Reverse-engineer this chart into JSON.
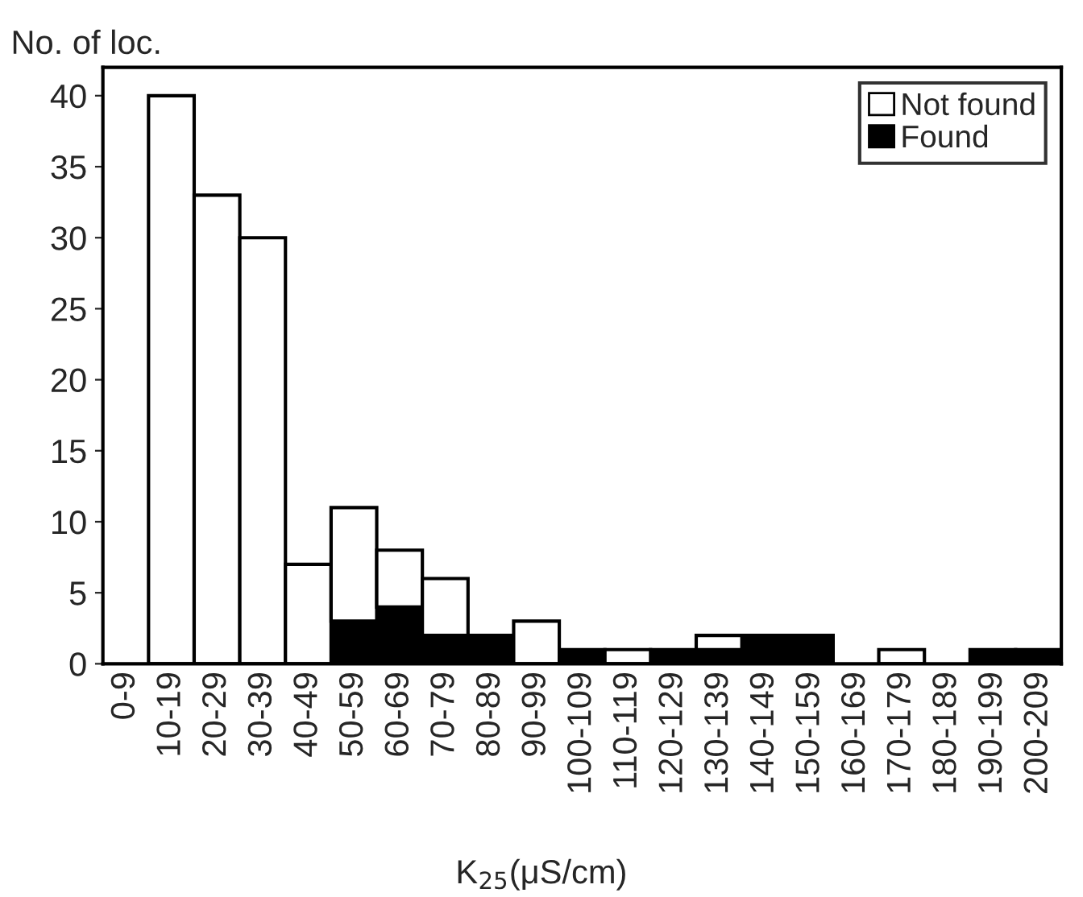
{
  "chart_data": {
    "type": "bar",
    "stacked": true,
    "ylabel": "No. of loc.",
    "xlabel": "K$_{25}$(μS/cm)",
    "categories": [
      "0-9",
      "10-19",
      "20-29",
      "30-39",
      "40-49",
      "50-59",
      "60-69",
      "70-79",
      "80-89",
      "90-99",
      "100-109",
      "110-119",
      "120-129",
      "130-139",
      "140-149",
      "150-159",
      "160-169",
      "170-179",
      "180-189",
      "190-199",
      "200-209"
    ],
    "series": [
      {
        "name": "Found",
        "color": "#000000",
        "values": [
          0,
          0,
          0,
          0,
          0,
          3,
          4,
          2,
          2,
          0,
          1,
          0,
          1,
          1,
          2,
          2,
          0,
          0,
          0,
          1,
          1
        ]
      },
      {
        "name": "Not found",
        "color": "#ffffff",
        "values": [
          0,
          40,
          33,
          30,
          7,
          8,
          4,
          4,
          0,
          3,
          0,
          1,
          0,
          1,
          0,
          0,
          0,
          1,
          0,
          0,
          0
        ]
      }
    ],
    "ylim": [
      0,
      42
    ],
    "yticks": [
      0,
      5,
      10,
      15,
      20,
      25,
      30,
      35,
      40
    ],
    "grid": false,
    "legend": "top right"
  }
}
